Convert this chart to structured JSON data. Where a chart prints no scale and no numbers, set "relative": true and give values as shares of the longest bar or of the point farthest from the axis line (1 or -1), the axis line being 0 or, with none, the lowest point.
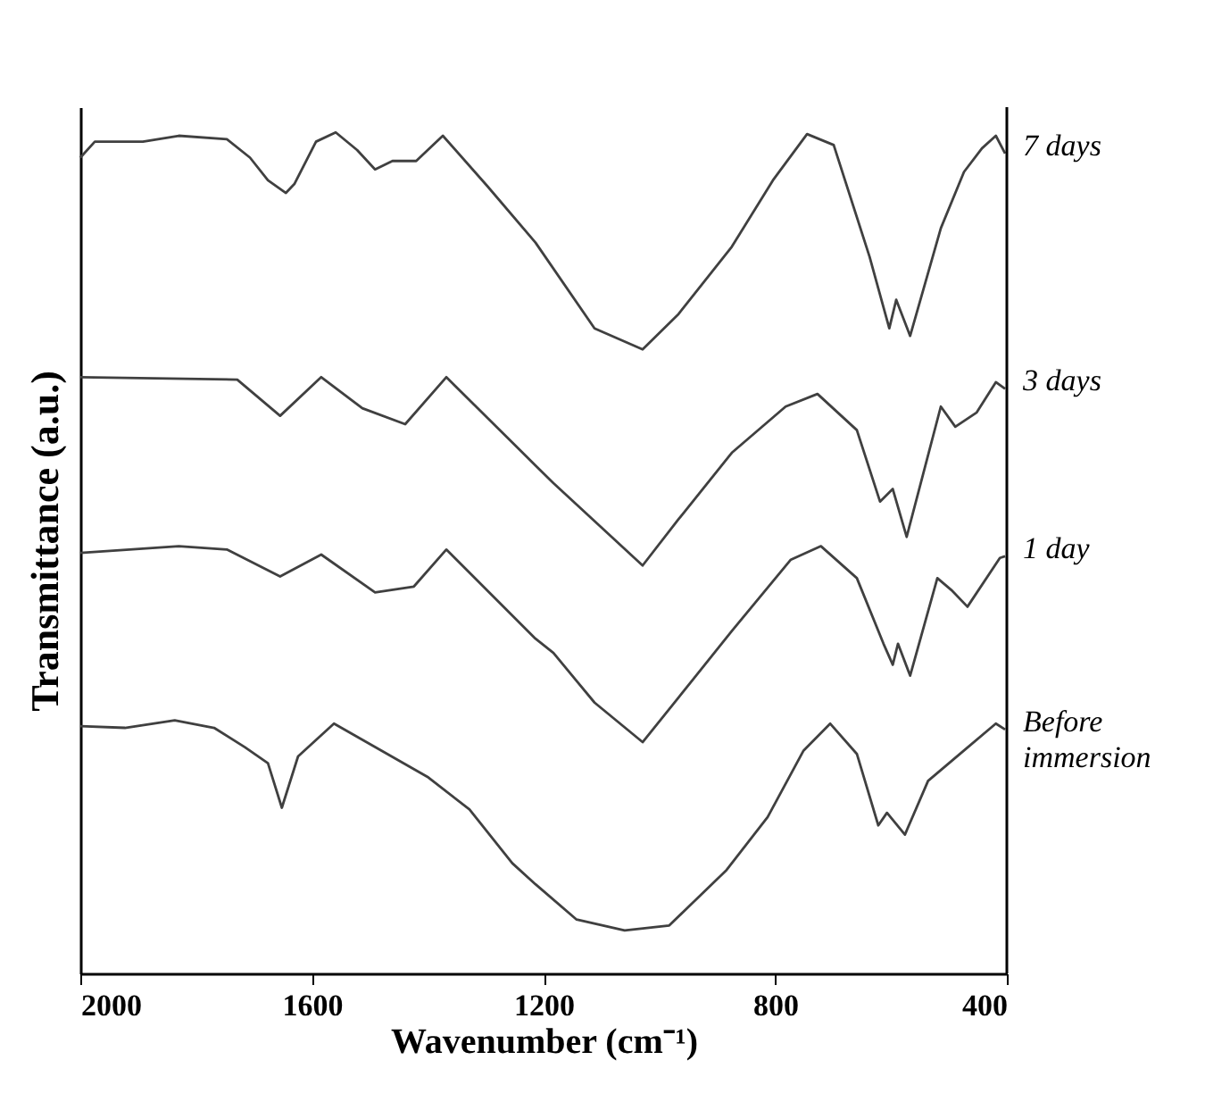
{
  "chart_data": {
    "type": "line",
    "relative": true,
    "xlabel": "Wavenumber (cm⁻¹)",
    "ylabel": "Transmittance (a.u.)",
    "xlim": [
      2000,
      400
    ],
    "xticks": [
      2000,
      1600,
      1200,
      800,
      400
    ],
    "tick_labels": "x",
    "series": [
      {
        "name": "7 days",
        "color": "#404040",
        "x": [
          2000,
          1975,
          1892,
          1830,
          1747,
          1707,
          1676,
          1645,
          1630,
          1593,
          1559,
          1522,
          1491,
          1461,
          1420,
          1374,
          1297,
          1214,
          1112,
          1029,
          967,
          875,
          804,
          745,
          699,
          637,
          603,
          591,
          567,
          514,
          474,
          443,
          419,
          403
        ],
        "values": [
          0.97,
          0.989,
          0.989,
          0.996,
          0.992,
          0.97,
          0.943,
          0.928,
          0.939,
          0.989,
          1.0,
          0.979,
          0.956,
          0.966,
          0.966,
          0.996,
          0.936,
          0.869,
          0.767,
          0.742,
          0.784,
          0.864,
          0.943,
          0.998,
          0.985,
          0.852,
          0.767,
          0.801,
          0.758,
          0.886,
          0.953,
          0.981,
          0.996,
          0.975
        ]
      },
      {
        "name": "3 days",
        "color": "#404040",
        "x": [
          2000,
          1729,
          1655,
          1584,
          1513,
          1439,
          1368,
          1214,
          1183,
          1029,
          967,
          875,
          782,
          727,
          659,
          619,
          597,
          573,
          514,
          489,
          452,
          419,
          403
        ],
        "values": [
          0.709,
          0.706,
          0.663,
          0.709,
          0.672,
          0.653,
          0.709,
          0.604,
          0.583,
          0.485,
          0.54,
          0.619,
          0.674,
          0.689,
          0.646,
          0.561,
          0.576,
          0.519,
          0.674,
          0.65,
          0.667,
          0.703,
          0.695
        ]
      },
      {
        "name": "1 day",
        "color": "#404040",
        "x": [
          2000,
          1830,
          1747,
          1655,
          1584,
          1491,
          1424,
          1368,
          1214,
          1183,
          1112,
          1029,
          967,
          875,
          773,
          721,
          659,
          613,
          597,
          588,
          567,
          520,
          496,
          468,
          412,
          403
        ],
        "values": [
          0.5,
          0.508,
          0.504,
          0.472,
          0.498,
          0.453,
          0.46,
          0.504,
          0.398,
          0.381,
          0.322,
          0.275,
          0.328,
          0.407,
          0.492,
          0.508,
          0.47,
          0.392,
          0.367,
          0.392,
          0.354,
          0.47,
          0.456,
          0.436,
          0.494,
          0.496
        ]
      },
      {
        "name": "Before immersion",
        "color": "#404040",
        "x": [
          2000,
          1923,
          1837,
          1769,
          1716,
          1676,
          1652,
          1624,
          1562,
          1470,
          1399,
          1328,
          1254,
          1214,
          1143,
          1060,
          983,
          884,
          813,
          751,
          705,
          659,
          622,
          607,
          576,
          536,
          474,
          419,
          403
        ],
        "values": [
          0.294,
          0.292,
          0.301,
          0.292,
          0.269,
          0.25,
          0.197,
          0.258,
          0.297,
          0.261,
          0.233,
          0.195,
          0.131,
          0.106,
          0.064,
          0.051,
          0.057,
          0.123,
          0.186,
          0.265,
          0.297,
          0.261,
          0.176,
          0.191,
          0.165,
          0.229,
          0.265,
          0.297,
          0.29
        ]
      }
    ]
  }
}
